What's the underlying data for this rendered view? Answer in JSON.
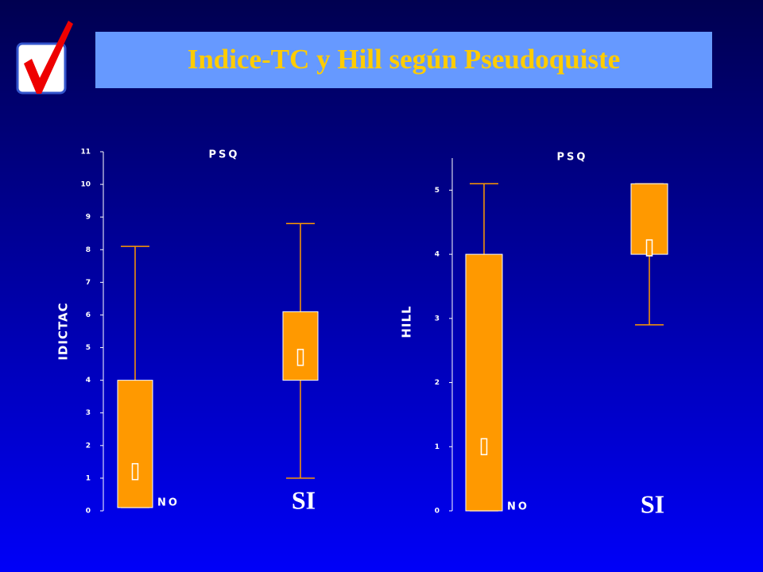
{
  "title": "Indice-TC y Hill según Pseudoquiste",
  "chart_data": [
    {
      "type": "box",
      "y_label": "IDICTAC",
      "annotation": "PSQ",
      "color": "#ff9900",
      "categories": [
        "NO",
        "SI"
      ],
      "boxes": [
        {
          "min": 0.1,
          "q1": 0.1,
          "mean": 1.2,
          "q3": 4,
          "max": 8.1
        },
        {
          "min": 1,
          "q1": 4,
          "mean": 4.7,
          "q3": 6.1,
          "max": 8.8
        }
      ],
      "ylim": [
        0,
        11
      ],
      "yticks": [
        0,
        1,
        2,
        3,
        4,
        5,
        6,
        7,
        8,
        9,
        10,
        11
      ]
    },
    {
      "type": "box",
      "y_label": "HILL",
      "annotation": "PSQ",
      "color": "#ff9900",
      "categories": [
        "NO",
        "SI"
      ],
      "boxes": [
        {
          "min": 0,
          "q1": 0,
          "mean": 1,
          "q3": 4,
          "max": 5.1
        },
        {
          "min": 2.9,
          "q1": 4,
          "mean": 4.1,
          "q3": 5.1,
          "max": 5.1
        }
      ],
      "ylim": [
        0,
        5.5
      ],
      "yticks": [
        0,
        1,
        2,
        3,
        4,
        5
      ]
    }
  ]
}
